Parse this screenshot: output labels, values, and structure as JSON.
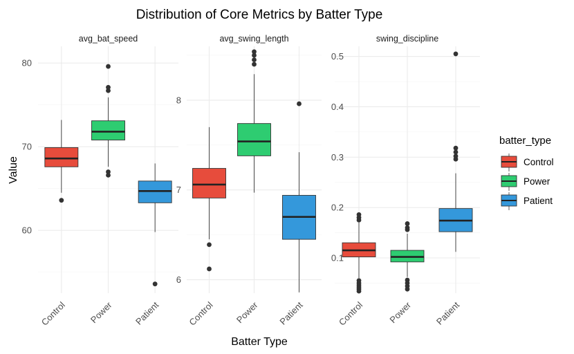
{
  "chart_data": {
    "type": "boxplot",
    "title": "Distribution of Core Metrics by Batter Type",
    "xlabel": "Batter Type",
    "ylabel": "Value",
    "categories": [
      "Control",
      "Power",
      "Patient"
    ],
    "colors": {
      "Control": "#e74c3c",
      "Power": "#2ecc71",
      "Patient": "#3498db"
    },
    "legend": {
      "title": "batter_type",
      "position": "right",
      "items": [
        "Control",
        "Power",
        "Patient"
      ]
    },
    "grid": true,
    "panels": [
      {
        "name": "avg_bat_speed",
        "ylim": [
          52.5,
          82
        ],
        "yticks": [
          "60",
          "70",
          "80"
        ],
        "ytick_values": [
          60,
          70,
          80
        ],
        "boxes": [
          {
            "category": "Control",
            "q1": 67.6,
            "median": 68.6,
            "q3": 69.9,
            "whisker_low": 64.5,
            "whisker_high": 73.2,
            "outliers": [
              63.6
            ]
          },
          {
            "category": "Power",
            "q1": 70.8,
            "median": 71.8,
            "q3": 73.1,
            "whisker_low": 67.6,
            "whisker_high": 75.9,
            "outliers": [
              66.6,
              67.0,
              76.7,
              77.1,
              79.6
            ]
          },
          {
            "category": "Patient",
            "q1": 63.3,
            "median": 64.7,
            "q3": 65.9,
            "whisker_low": 59.8,
            "whisker_high": 68.0,
            "outliers": [
              53.6
            ]
          }
        ]
      },
      {
        "name": "avg_swing_length",
        "ylim": [
          5.85,
          8.6
        ],
        "yticks": [
          "6",
          "7",
          "8"
        ],
        "ytick_values": [
          6,
          7,
          8
        ],
        "boxes": [
          {
            "category": "Control",
            "q1": 6.91,
            "median": 7.06,
            "q3": 7.24,
            "whisker_low": 6.45,
            "whisker_high": 7.7,
            "outliers": [
              6.39,
              6.12
            ]
          },
          {
            "category": "Power",
            "q1": 7.38,
            "median": 7.54,
            "q3": 7.74,
            "whisker_low": 6.97,
            "whisker_high": 8.29,
            "outliers": [
              8.4,
              8.45,
              8.5,
              8.54
            ]
          },
          {
            "category": "Patient",
            "q1": 6.45,
            "median": 6.7,
            "q3": 6.94,
            "whisker_low": 5.86,
            "whisker_high": 7.42,
            "outliers": [
              7.96
            ]
          }
        ]
      },
      {
        "name": "swing_discipline",
        "ylim": [
          0.03,
          0.52
        ],
        "yticks": [
          "0.1",
          "0.2",
          "0.3",
          "0.4",
          "0.5"
        ],
        "ytick_values": [
          0.1,
          0.2,
          0.3,
          0.4,
          0.5
        ],
        "boxes": [
          {
            "category": "Control",
            "q1": 0.102,
            "median": 0.115,
            "q3": 0.13,
            "whisker_low": 0.06,
            "whisker_high": 0.17,
            "outliers": [
              0.034,
              0.038,
              0.042,
              0.046,
              0.05,
              0.055,
              0.175,
              0.18,
              0.186
            ]
          },
          {
            "category": "Power",
            "q1": 0.092,
            "median": 0.102,
            "q3": 0.115,
            "whisker_low": 0.062,
            "whisker_high": 0.148,
            "outliers": [
              0.038,
              0.044,
              0.05,
              0.056,
              0.156,
              0.16,
              0.168
            ]
          },
          {
            "category": "Patient",
            "q1": 0.152,
            "median": 0.174,
            "q3": 0.198,
            "whisker_low": 0.112,
            "whisker_high": 0.268,
            "outliers": [
              0.296,
              0.302,
              0.31,
              0.318,
              0.505
            ]
          }
        ]
      }
    ]
  }
}
